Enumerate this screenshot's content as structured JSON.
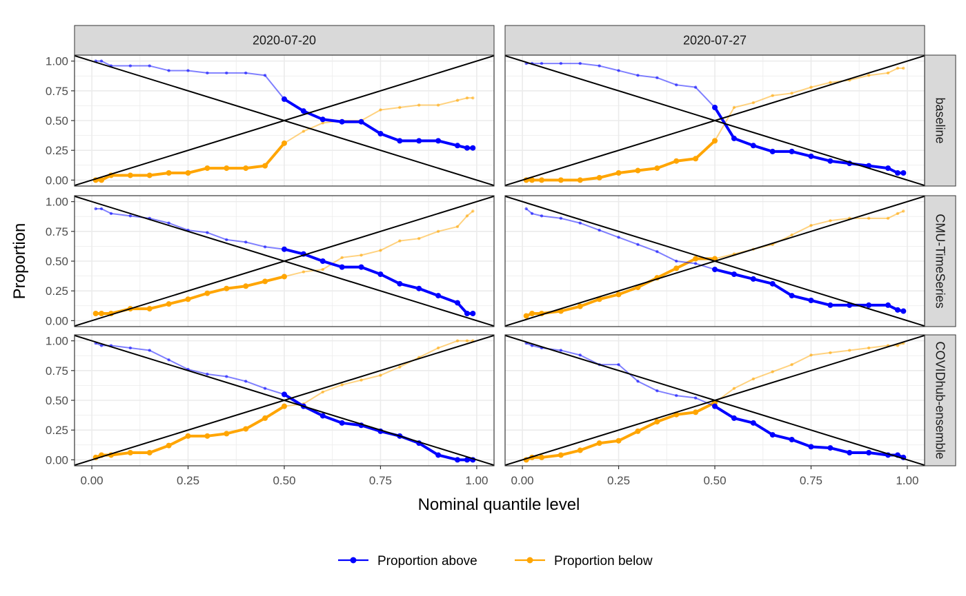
{
  "chart_data": {
    "type": "line",
    "facets": {
      "columns": [
        "2020-07-20",
        "2020-07-27"
      ],
      "rows": [
        "baseline",
        "CMU-TimeSeries",
        "COVIDhub-ensemble"
      ]
    },
    "xlabel": "Nominal quantile level",
    "ylabel": "Proportion",
    "xlim": [
      -0.045,
      1.045
    ],
    "ylim": [
      -0.05,
      1.05
    ],
    "x_ticks": [
      0,
      0.25,
      0.5,
      0.75,
      1
    ],
    "x_tick_labels": [
      "0.00",
      "0.25",
      "0.50",
      "0.75",
      "1.00"
    ],
    "y_ticks": [
      0,
      0.25,
      0.5,
      0.75,
      1
    ],
    "y_tick_labels": [
      "0.00",
      "0.25",
      "0.50",
      "0.75",
      "1.00"
    ],
    "grid": true,
    "reference_lines": [
      "y = x",
      "y = 1 - x"
    ],
    "legend": {
      "position": "bottom",
      "entries": [
        {
          "label": "Proportion above",
          "color": "#0000ff"
        },
        {
          "label": "Proportion below",
          "color": "#ffa500"
        }
      ]
    },
    "colors": {
      "above": "#0000ff",
      "below": "#ffa500",
      "strip_bg": "#d9d9d9",
      "grid": "#ebebeb"
    },
    "quantile_levels": [
      0.01,
      0.025,
      0.05,
      0.1,
      0.15,
      0.2,
      0.25,
      0.3,
      0.35,
      0.4,
      0.45,
      0.5,
      0.55,
      0.6,
      0.65,
      0.7,
      0.75,
      0.8,
      0.85,
      0.9,
      0.95,
      0.975,
      0.99
    ],
    "panels": [
      {
        "row": "baseline",
        "column": "2020-07-20",
        "above": [
          1.0,
          1.0,
          0.96,
          0.96,
          0.96,
          0.92,
          0.92,
          0.9,
          0.9,
          0.9,
          0.88,
          0.68,
          0.58,
          0.51,
          0.49,
          0.49,
          0.39,
          0.33,
          0.33,
          0.33,
          0.29,
          0.27,
          0.27
        ],
        "below": [
          0.0,
          0.0,
          0.04,
          0.04,
          0.04,
          0.06,
          0.06,
          0.1,
          0.1,
          0.1,
          0.12,
          0.31,
          0.41,
          0.48,
          0.5,
          0.5,
          0.59,
          0.61,
          0.63,
          0.63,
          0.67,
          0.69,
          0.69
        ]
      },
      {
        "row": "baseline",
        "column": "2020-07-27",
        "above": [
          0.98,
          0.98,
          0.98,
          0.98,
          0.98,
          0.96,
          0.92,
          0.88,
          0.86,
          0.8,
          0.78,
          0.61,
          0.35,
          0.29,
          0.24,
          0.24,
          0.2,
          0.16,
          0.14,
          0.12,
          0.1,
          0.06,
          0.06
        ],
        "below": [
          0.0,
          0.0,
          0.0,
          0.0,
          0.0,
          0.02,
          0.06,
          0.08,
          0.1,
          0.16,
          0.18,
          0.33,
          0.61,
          0.65,
          0.71,
          0.73,
          0.78,
          0.82,
          0.84,
          0.88,
          0.9,
          0.94,
          0.94
        ]
      },
      {
        "row": "CMU-TimeSeries",
        "column": "2020-07-20",
        "above": [
          0.94,
          0.94,
          0.9,
          0.88,
          0.86,
          0.82,
          0.76,
          0.74,
          0.68,
          0.66,
          0.62,
          0.6,
          0.56,
          0.5,
          0.45,
          0.45,
          0.39,
          0.31,
          0.27,
          0.21,
          0.15,
          0.06,
          0.06
        ],
        "below": [
          0.06,
          0.06,
          0.06,
          0.1,
          0.1,
          0.14,
          0.18,
          0.23,
          0.27,
          0.29,
          0.33,
          0.37,
          0.41,
          0.43,
          0.53,
          0.55,
          0.59,
          0.67,
          0.69,
          0.75,
          0.79,
          0.88,
          0.92
        ]
      },
      {
        "row": "CMU-TimeSeries",
        "column": "2020-07-27",
        "above": [
          0.94,
          0.9,
          0.88,
          0.86,
          0.82,
          0.76,
          0.7,
          0.64,
          0.58,
          0.5,
          0.48,
          0.43,
          0.39,
          0.35,
          0.31,
          0.21,
          0.17,
          0.13,
          0.13,
          0.13,
          0.13,
          0.09,
          0.08
        ],
        "below": [
          0.04,
          0.06,
          0.06,
          0.08,
          0.12,
          0.18,
          0.22,
          0.28,
          0.36,
          0.44,
          0.52,
          0.52,
          0.56,
          0.6,
          0.64,
          0.72,
          0.8,
          0.84,
          0.86,
          0.86,
          0.86,
          0.9,
          0.92
        ]
      },
      {
        "row": "COVIDhub-ensemble",
        "column": "2020-07-20",
        "above": [
          0.98,
          0.96,
          0.96,
          0.94,
          0.92,
          0.84,
          0.76,
          0.72,
          0.7,
          0.66,
          0.6,
          0.55,
          0.45,
          0.37,
          0.31,
          0.29,
          0.24,
          0.2,
          0.14,
          0.04,
          0.0,
          0.0,
          0.0
        ],
        "below": [
          0.02,
          0.04,
          0.04,
          0.06,
          0.06,
          0.12,
          0.2,
          0.2,
          0.22,
          0.26,
          0.35,
          0.45,
          0.47,
          0.57,
          0.63,
          0.67,
          0.71,
          0.78,
          0.86,
          0.94,
          1.0,
          1.0,
          1.0
        ]
      },
      {
        "row": "COVIDhub-ensemble",
        "column": "2020-07-27",
        "above": [
          0.98,
          0.96,
          0.94,
          0.92,
          0.88,
          0.8,
          0.8,
          0.66,
          0.58,
          0.54,
          0.52,
          0.45,
          0.35,
          0.31,
          0.21,
          0.17,
          0.11,
          0.1,
          0.06,
          0.06,
          0.04,
          0.04,
          0.02
        ],
        "below": [
          0.0,
          0.02,
          0.02,
          0.04,
          0.08,
          0.14,
          0.16,
          0.24,
          0.32,
          0.38,
          0.4,
          0.48,
          0.6,
          0.68,
          0.74,
          0.8,
          0.88,
          0.9,
          0.92,
          0.94,
          0.96,
          0.96,
          0.98
        ]
      }
    ]
  }
}
